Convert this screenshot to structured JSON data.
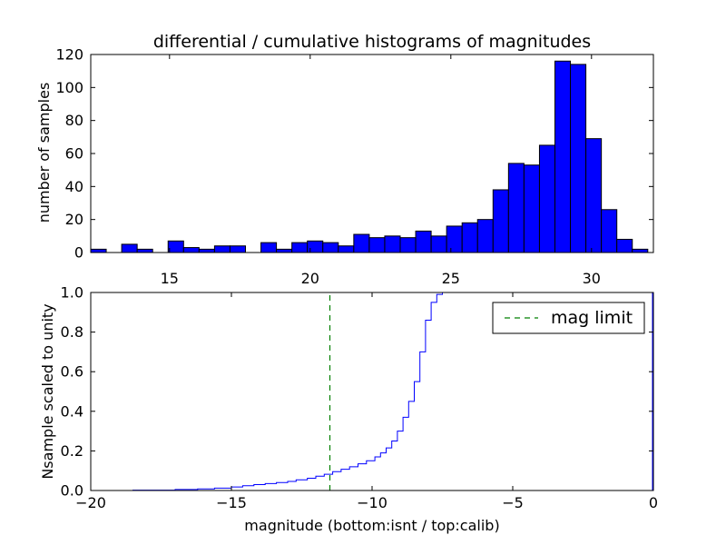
{
  "chart_data": [
    {
      "type": "bar",
      "title": "differential / cumulative histograms of magnitudes",
      "xlabel": "",
      "ylabel": "number of samples",
      "bin_start": 12.2,
      "bin_width": 0.55,
      "counts": [
        2,
        0,
        5,
        2,
        0,
        7,
        3,
        2,
        4,
        4,
        0,
        6,
        2,
        6,
        7,
        6,
        4,
        11,
        9,
        10,
        9,
        13,
        10,
        16,
        18,
        20,
        38,
        54,
        53,
        65,
        116,
        114,
        69,
        26,
        8,
        2
      ],
      "xlim": [
        12.2,
        32.2
      ],
      "ylim": [
        0,
        120
      ],
      "xticks": [
        "15",
        "20",
        "25",
        "30"
      ],
      "yticks": [
        "0",
        "20",
        "40",
        "60",
        "80",
        "100",
        "120"
      ],
      "xtick_position": "top-of-lower-panel",
      "bar_color": "#0000ff",
      "grid": false
    },
    {
      "type": "line",
      "step": true,
      "xlabel": "magnitude (bottom:isnt / top:calib)",
      "ylabel": "Nsample scaled to unity",
      "xlim": [
        -20,
        0
      ],
      "ylim": [
        0.0,
        1.0
      ],
      "xticks": [
        "−20",
        "−15",
        "−10",
        "−5",
        "0"
      ],
      "yticks": [
        "0.0",
        "0.2",
        "0.4",
        "0.6",
        "0.8",
        "1.0"
      ],
      "grid": false,
      "series": [
        {
          "color": "#0000ff",
          "x": [
            -20.0,
            -18.5,
            -17.0,
            -16.2,
            -15.6,
            -15.0,
            -14.6,
            -14.2,
            -13.8,
            -13.4,
            -13.0,
            -12.7,
            -12.3,
            -12.0,
            -11.7,
            -11.4,
            -11.1,
            -10.8,
            -10.5,
            -10.2,
            -9.9,
            -9.7,
            -9.5,
            -9.3,
            -9.1,
            -8.9,
            -8.7,
            -8.5,
            -8.3,
            -8.1,
            -7.9,
            -7.7,
            -7.5
          ],
          "y": [
            0.0,
            0.002,
            0.005,
            0.008,
            0.012,
            0.018,
            0.024,
            0.03,
            0.035,
            0.04,
            0.046,
            0.054,
            0.062,
            0.072,
            0.082,
            0.095,
            0.107,
            0.12,
            0.135,
            0.15,
            0.17,
            0.19,
            0.215,
            0.25,
            0.3,
            0.37,
            0.45,
            0.55,
            0.7,
            0.86,
            0.95,
            0.99,
            1.0
          ]
        },
        {
          "name": "mag limit",
          "color": "#008000",
          "style": "dashed",
          "x": [
            -11.5,
            -11.5
          ],
          "y": [
            0.0,
            1.0
          ]
        }
      ],
      "legend": {
        "position": "top-right",
        "entries": [
          "mag limit"
        ]
      }
    }
  ]
}
